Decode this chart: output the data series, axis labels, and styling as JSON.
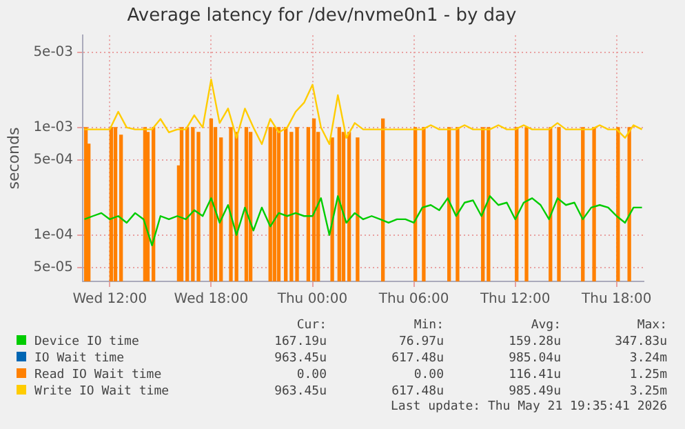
{
  "chart_data": {
    "type": "line",
    "title": "Average latency for /dev/nvme0n1 - by day",
    "ylabel": "seconds",
    "log": "y",
    "grid": true,
    "legend": "bottom",
    "marker": "none",
    "line_style": "solid",
    "xlim": [
      "2026-05-20T10:24",
      "2026-05-21T19:36"
    ],
    "xticks": [
      {
        "value": "2026-05-20T12:00",
        "label": "Wed 12:00"
      },
      {
        "value": "2026-05-20T18:00",
        "label": "Wed 18:00"
      },
      {
        "value": "2026-05-21T00:00",
        "label": "Thu 00:00"
      },
      {
        "value": "2026-05-21T06:00",
        "label": "Thu 06:00"
      },
      {
        "value": "2026-05-21T12:00",
        "label": "Thu 12:00"
      },
      {
        "value": "2026-05-21T18:00",
        "label": "Thu 18:00"
      }
    ],
    "ylim": [
      3.7e-05,
      0.0072
    ],
    "yticks": [
      {
        "value": 5e-05,
        "label": "5e-05"
      },
      {
        "value": 0.0001,
        "label": "1e-04"
      },
      {
        "value": 0.0005,
        "label": "5e-04"
      },
      {
        "value": 0.001,
        "label": "1e-03"
      },
      {
        "value": 0.005,
        "label": "5e-03"
      }
    ],
    "x": [
      "2026-05-20T10:30",
      "2026-05-20T11:00",
      "2026-05-20T11:30",
      "2026-05-20T12:00",
      "2026-05-20T12:30",
      "2026-05-20T13:00",
      "2026-05-20T13:30",
      "2026-05-20T14:00",
      "2026-05-20T14:30",
      "2026-05-20T15:00",
      "2026-05-20T15:30",
      "2026-05-20T16:00",
      "2026-05-20T16:30",
      "2026-05-20T17:00",
      "2026-05-20T17:30",
      "2026-05-20T18:00",
      "2026-05-20T18:30",
      "2026-05-20T19:00",
      "2026-05-20T19:30",
      "2026-05-20T20:00",
      "2026-05-20T20:30",
      "2026-05-20T21:00",
      "2026-05-20T21:30",
      "2026-05-20T22:00",
      "2026-05-20T22:30",
      "2026-05-20T23:00",
      "2026-05-20T23:30",
      "2026-05-21T00:00",
      "2026-05-21T00:30",
      "2026-05-21T01:00",
      "2026-05-21T01:30",
      "2026-05-21T02:00",
      "2026-05-21T02:30",
      "2026-05-21T03:00",
      "2026-05-21T03:30",
      "2026-05-21T04:00",
      "2026-05-21T04:30",
      "2026-05-21T05:00",
      "2026-05-21T05:30",
      "2026-05-21T06:00",
      "2026-05-21T06:30",
      "2026-05-21T07:00",
      "2026-05-21T07:30",
      "2026-05-21T08:00",
      "2026-05-21T08:30",
      "2026-05-21T09:00",
      "2026-05-21T09:30",
      "2026-05-21T10:00",
      "2026-05-21T10:30",
      "2026-05-21T11:00",
      "2026-05-21T11:30",
      "2026-05-21T12:00",
      "2026-05-21T12:30",
      "2026-05-21T13:00",
      "2026-05-21T13:30",
      "2026-05-21T14:00",
      "2026-05-21T14:30",
      "2026-05-21T15:00",
      "2026-05-21T15:30",
      "2026-05-21T16:00",
      "2026-05-21T16:30",
      "2026-05-21T17:00",
      "2026-05-21T17:30",
      "2026-05-21T18:00",
      "2026-05-21T18:30",
      "2026-05-21T19:00",
      "2026-05-21T19:30"
    ],
    "series": [
      {
        "name": "Device IO time",
        "color": "#00cc00",
        "values": [
          0.00014,
          0.00015,
          0.00016,
          0.00014,
          0.00015,
          0.00013,
          0.00016,
          0.00014,
          8e-05,
          0.00015,
          0.00014,
          0.00015,
          0.00014,
          0.00017,
          0.00015,
          0.00022,
          0.00013,
          0.00019,
          0.0001,
          0.00018,
          0.00011,
          0.00018,
          0.00012,
          0.00016,
          0.00015,
          0.00016,
          0.00015,
          0.00015,
          0.00022,
          0.0001,
          0.00023,
          0.00013,
          0.00016,
          0.00014,
          0.00015,
          0.00014,
          0.00013,
          0.00014,
          0.00014,
          0.00013,
          0.00018,
          0.00019,
          0.00017,
          0.00022,
          0.00015,
          0.0002,
          0.00021,
          0.00015,
          0.00023,
          0.00019,
          0.0002,
          0.00014,
          0.0002,
          0.00022,
          0.00019,
          0.00014,
          0.00022,
          0.00019,
          0.0002,
          0.00014,
          0.00018,
          0.00019,
          0.00018,
          0.00015,
          0.00013,
          0.00018,
          0.00018
        ]
      },
      {
        "name": "IO Wait time",
        "color": "#0066b3",
        "values": [
          null,
          null,
          null,
          null,
          null,
          null,
          null,
          null,
          null,
          null,
          null,
          null,
          null,
          null,
          null,
          null,
          null,
          null,
          null,
          null,
          null,
          null,
          null,
          null,
          null,
          null,
          null,
          null,
          null,
          null,
          null,
          null,
          null,
          null,
          null,
          null,
          null,
          null,
          null,
          null,
          null,
          null,
          null,
          null,
          null,
          null,
          null,
          null,
          null,
          null,
          null,
          null,
          null,
          null,
          null,
          null,
          null,
          null,
          null,
          null,
          null,
          null,
          null,
          null,
          null,
          null,
          null
        ]
      },
      {
        "name": "Read IO Wait time",
        "color": "#ff8000",
        "type": "bar",
        "x": [
          "2026-05-20T10:35",
          "2026-05-20T10:45",
          "2026-05-20T12:05",
          "2026-05-20T12:20",
          "2026-05-20T12:40",
          "2026-05-20T14:05",
          "2026-05-20T14:15",
          "2026-05-20T14:35",
          "2026-05-20T16:05",
          "2026-05-20T16:15",
          "2026-05-20T16:35",
          "2026-05-20T16:55",
          "2026-05-20T17:15",
          "2026-05-20T18:00",
          "2026-05-20T18:15",
          "2026-05-20T18:35",
          "2026-05-20T19:10",
          "2026-05-20T19:30",
          "2026-05-20T20:05",
          "2026-05-20T20:20",
          "2026-05-20T21:30",
          "2026-05-20T21:45",
          "2026-05-20T22:00",
          "2026-05-20T22:25",
          "2026-05-20T22:45",
          "2026-05-20T23:05",
          "2026-05-20T23:45",
          "2026-05-21T00:05",
          "2026-05-21T00:20",
          "2026-05-21T01:10",
          "2026-05-21T01:35",
          "2026-05-21T01:50",
          "2026-05-21T02:10",
          "2026-05-21T02:40",
          "2026-05-21T04:10",
          "2026-05-21T06:05",
          "2026-05-21T06:35",
          "2026-05-21T08:05",
          "2026-05-21T08:35",
          "2026-05-21T10:05",
          "2026-05-21T10:25",
          "2026-05-21T12:05",
          "2026-05-21T12:40",
          "2026-05-21T14:05",
          "2026-05-21T14:35",
          "2026-05-21T16:00",
          "2026-05-21T16:40",
          "2026-05-21T18:05",
          "2026-05-21T18:45"
        ],
        "values": [
          0.001,
          0.0007,
          0.001,
          0.001,
          0.00085,
          0.001,
          0.0009,
          0.001,
          0.00044,
          0.001,
          0.001,
          0.001,
          0.0009,
          0.0012,
          0.001,
          0.0008,
          0.001,
          0.0009,
          0.001,
          0.0009,
          0.001,
          0.001,
          0.001,
          0.001,
          0.0009,
          0.001,
          0.001,
          0.0012,
          0.0009,
          0.0008,
          0.001,
          0.0009,
          0.0009,
          0.0008,
          0.0012,
          0.001,
          0.001,
          0.001,
          0.001,
          0.001,
          0.001,
          0.001,
          0.001,
          0.001,
          0.001,
          0.001,
          0.001,
          0.001,
          0.001
        ]
      },
      {
        "name": "Write IO Wait time",
        "color": "#ffcc00",
        "values": [
          0.00096,
          0.00096,
          0.00096,
          0.00096,
          0.0014,
          0.001,
          0.00096,
          0.00096,
          0.00096,
          0.0012,
          0.0009,
          0.00096,
          0.00096,
          0.0013,
          0.001,
          0.0028,
          0.0011,
          0.0015,
          0.0008,
          0.0015,
          0.001,
          0.0007,
          0.0012,
          0.0009,
          0.001,
          0.0014,
          0.0017,
          0.0025,
          0.001,
          0.0007,
          0.002,
          0.0008,
          0.0011,
          0.00096,
          0.00096,
          0.00096,
          0.00096,
          0.00096,
          0.00096,
          0.00096,
          0.00096,
          0.00105,
          0.00096,
          0.00096,
          0.00096,
          0.00105,
          0.00096,
          0.00096,
          0.00096,
          0.00105,
          0.00096,
          0.00096,
          0.00105,
          0.00096,
          0.00096,
          0.00096,
          0.0011,
          0.00096,
          0.00096,
          0.00096,
          0.00096,
          0.00105,
          0.00096,
          0.00096,
          0.0008,
          0.00105,
          0.00096
        ]
      }
    ],
    "annotations": [
      "Cur:",
      "Min:",
      "Avg:",
      "Max:",
      "167.19u",
      "76.97u",
      "159.28u",
      "347.83u",
      "963.45u",
      "617.48u",
      "985.04u",
      "3.24m",
      "0.00",
      "0.00",
      "116.41u",
      "1.25m",
      "963.45u",
      "617.48u",
      "985.49u",
      "3.25m",
      "Last update: Thu May 21 19:35:41 2026"
    ]
  }
}
